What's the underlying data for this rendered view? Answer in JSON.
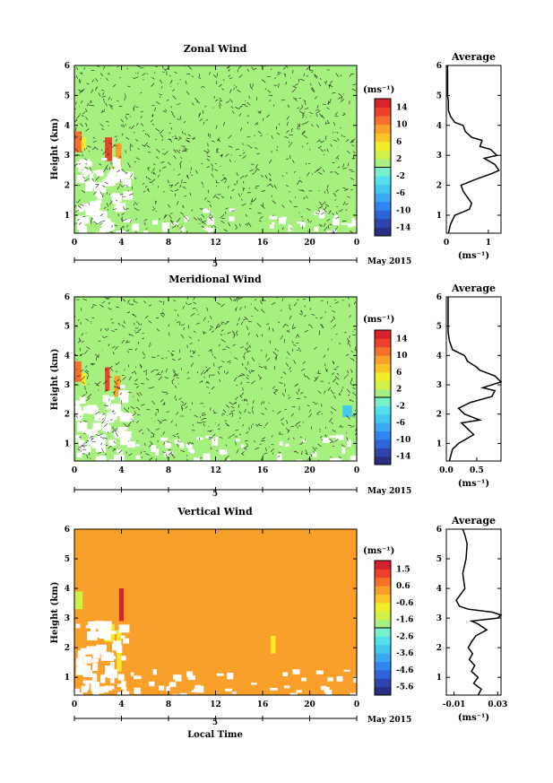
{
  "chart_data": [
    {
      "type": "heatmap",
      "title": "Zonal Wind",
      "ylabel": "Height (km)",
      "xlabel": "",
      "x_ticks": [
        "0",
        "4",
        "8",
        "12",
        "16",
        "20",
        "0"
      ],
      "y_ticks": [
        "1",
        "2",
        "3",
        "4",
        "5",
        "6"
      ],
      "xlim": [
        0,
        24
      ],
      "ylim": [
        0.4,
        6
      ],
      "date_label": "May 2015",
      "day_label": "5",
      "unit_label": "(ms⁻¹)",
      "colorbar": {
        "ticks": [
          "14",
          "10",
          "6",
          "2",
          "-2",
          "-6",
          "-10",
          "-14"
        ],
        "vmin": -16,
        "vmax": 16
      },
      "dominant_value": 0,
      "features": [
        {
          "t0": 0.0,
          "t1": 0.6,
          "h0": 3.1,
          "h1": 3.8,
          "value": 10
        },
        {
          "t0": 0.6,
          "t1": 1.0,
          "h0": 3.2,
          "h1": 3.6,
          "value": 4
        },
        {
          "t0": 2.6,
          "t1": 3.2,
          "h0": 2.8,
          "h1": 3.6,
          "value": 12
        },
        {
          "t0": 3.5,
          "t1": 4.0,
          "h0": 2.6,
          "h1": 3.4,
          "value": 8
        },
        {
          "t0": 3.2,
          "t1": 3.5,
          "h0": 2.0,
          "h1": 2.6,
          "value": 5
        }
      ],
      "profile": {
        "title": "Average",
        "xlabel": "(ms⁻¹)",
        "x_ticks": [
          "0",
          "1"
        ],
        "xlim": [
          0,
          1.3
        ],
        "ylim": [
          0.4,
          6
        ],
        "y_ticks": [
          "1",
          "2",
          "3",
          "4",
          "5",
          "6"
        ],
        "values": [
          0.05,
          0.1,
          0.2,
          0.55,
          0.6,
          0.5,
          0.4,
          0.35,
          0.7,
          1.1,
          1.25,
          1.15,
          0.9,
          1.2,
          1.05,
          0.8,
          0.85,
          0.6,
          0.45,
          0.4,
          0.2,
          0.1,
          0.05,
          0.05,
          0.03,
          0.03,
          0.03,
          0.03
        ],
        "heights": [
          0.4,
          0.7,
          1.0,
          1.2,
          1.4,
          1.6,
          1.8,
          2.0,
          2.2,
          2.4,
          2.5,
          2.7,
          2.9,
          3.0,
          3.2,
          3.3,
          3.5,
          3.6,
          3.8,
          4.0,
          4.1,
          4.3,
          4.5,
          4.8,
          5.0,
          5.3,
          5.6,
          6.0
        ]
      }
    },
    {
      "type": "heatmap",
      "title": "Meridional Wind",
      "ylabel": "Height (km)",
      "xlabel": "",
      "x_ticks": [
        "0",
        "4",
        "8",
        "12",
        "16",
        "20",
        "0"
      ],
      "y_ticks": [
        "1",
        "2",
        "3",
        "4",
        "5",
        "6"
      ],
      "xlim": [
        0,
        24
      ],
      "ylim": [
        0.4,
        6
      ],
      "date_label": "May 2015",
      "day_label": "5",
      "unit_label": "(ms⁻¹)",
      "colorbar": {
        "ticks": [
          "14",
          "10",
          "6",
          "2",
          "-2",
          "-6",
          "-10",
          "-14"
        ],
        "vmin": -16,
        "vmax": 16
      },
      "dominant_value": 0,
      "features": [
        {
          "t0": 0.0,
          "t1": 0.6,
          "h0": 3.1,
          "h1": 3.8,
          "value": 10
        },
        {
          "t0": 2.6,
          "t1": 3.0,
          "h0": 2.8,
          "h1": 3.6,
          "value": 12
        },
        {
          "t0": 3.4,
          "t1": 3.9,
          "h0": 2.6,
          "h1": 3.3,
          "value": 8
        },
        {
          "t0": 0.6,
          "t1": 1.0,
          "h0": 3.0,
          "h1": 3.4,
          "value": 5
        },
        {
          "t0": 22.8,
          "t1": 23.6,
          "h0": 1.9,
          "h1": 2.3,
          "value": -6
        }
      ],
      "profile": {
        "title": "Average",
        "xlabel": "(ms⁻¹)",
        "x_ticks": [
          "0.0",
          "0.5"
        ],
        "xlim": [
          0,
          0.9
        ],
        "ylim": [
          0.4,
          6
        ],
        "y_ticks": [
          "1",
          "2",
          "3",
          "4",
          "5",
          "6"
        ],
        "values": [
          0.05,
          0.1,
          0.2,
          0.45,
          0.35,
          0.25,
          0.55,
          0.3,
          0.2,
          0.4,
          0.75,
          0.8,
          0.6,
          0.9,
          0.8,
          0.55,
          0.5,
          0.35,
          0.3,
          0.1,
          0.05,
          0.03,
          0.03,
          0.03,
          0.03
        ],
        "heights": [
          0.4,
          0.8,
          1.0,
          1.3,
          1.5,
          1.7,
          1.8,
          2.0,
          2.2,
          2.4,
          2.6,
          2.8,
          2.9,
          3.1,
          3.3,
          3.5,
          3.6,
          3.8,
          4.0,
          4.2,
          4.5,
          4.8,
          5.2,
          5.6,
          6.0
        ]
      }
    },
    {
      "type": "heatmap",
      "title": "Vertical Wind",
      "ylabel": "Height (km)",
      "xlabel": "Local Time",
      "x_ticks": [
        "0",
        "4",
        "8",
        "12",
        "16",
        "20",
        "0"
      ],
      "y_ticks": [
        "1",
        "2",
        "3",
        "4",
        "5",
        "6"
      ],
      "xlim": [
        0,
        24
      ],
      "ylim": [
        0.4,
        6
      ],
      "date_label": "May 2015",
      "day_label": "5",
      "unit_label": "(ms⁻¹)",
      "colorbar": {
        "ticks": [
          "1.5",
          "0.6",
          "-0.6",
          "-1.6",
          "-2.6",
          "-3.6",
          "-4.6",
          "-5.6"
        ],
        "vmin": -6.0,
        "vmax": 2.0
      },
      "dominant_value": 0.1,
      "features": [
        {
          "t0": 0.0,
          "t1": 0.7,
          "h0": 3.3,
          "h1": 3.9,
          "value": -1.2
        },
        {
          "t0": 3.8,
          "t1": 4.2,
          "h0": 2.9,
          "h1": 4.0,
          "value": 1.5
        },
        {
          "t0": 3.6,
          "t1": 4.0,
          "h0": 1.2,
          "h1": 2.6,
          "value": -1.0
        },
        {
          "t0": 2.6,
          "t1": 3.4,
          "h0": 2.2,
          "h1": 2.8,
          "value": -1.0
        },
        {
          "t0": 16.7,
          "t1": 17.1,
          "h0": 1.8,
          "h1": 2.4,
          "value": -1.0
        }
      ],
      "profile": {
        "title": "Average",
        "xlabel": "(ms⁻¹)",
        "x_ticks": [
          "-0.01",
          "0.03"
        ],
        "xlim": [
          -0.017,
          0.033
        ],
        "ylim": [
          0.4,
          6
        ],
        "y_ticks": [
          "1",
          "2",
          "3",
          "4",
          "5",
          "6"
        ],
        "values": [
          0.012,
          0.015,
          0.008,
          0.012,
          0.006,
          0.009,
          0.004,
          0.007,
          0.003,
          0.006,
          0.01,
          0.02,
          0.012,
          0.006,
          0.03,
          0.033,
          0.025,
          0.003,
          -0.005,
          -0.008,
          -0.004,
          0.0,
          -0.002,
          0.001,
          0.002,
          0.0,
          -0.002
        ],
        "heights": [
          0.4,
          0.6,
          0.8,
          1.0,
          1.2,
          1.4,
          1.6,
          1.8,
          2.0,
          2.2,
          2.4,
          2.6,
          2.8,
          2.9,
          3.0,
          3.1,
          3.2,
          3.3,
          3.4,
          3.6,
          3.8,
          4.0,
          4.5,
          5.0,
          5.5,
          5.8,
          6.0
        ]
      }
    }
  ]
}
